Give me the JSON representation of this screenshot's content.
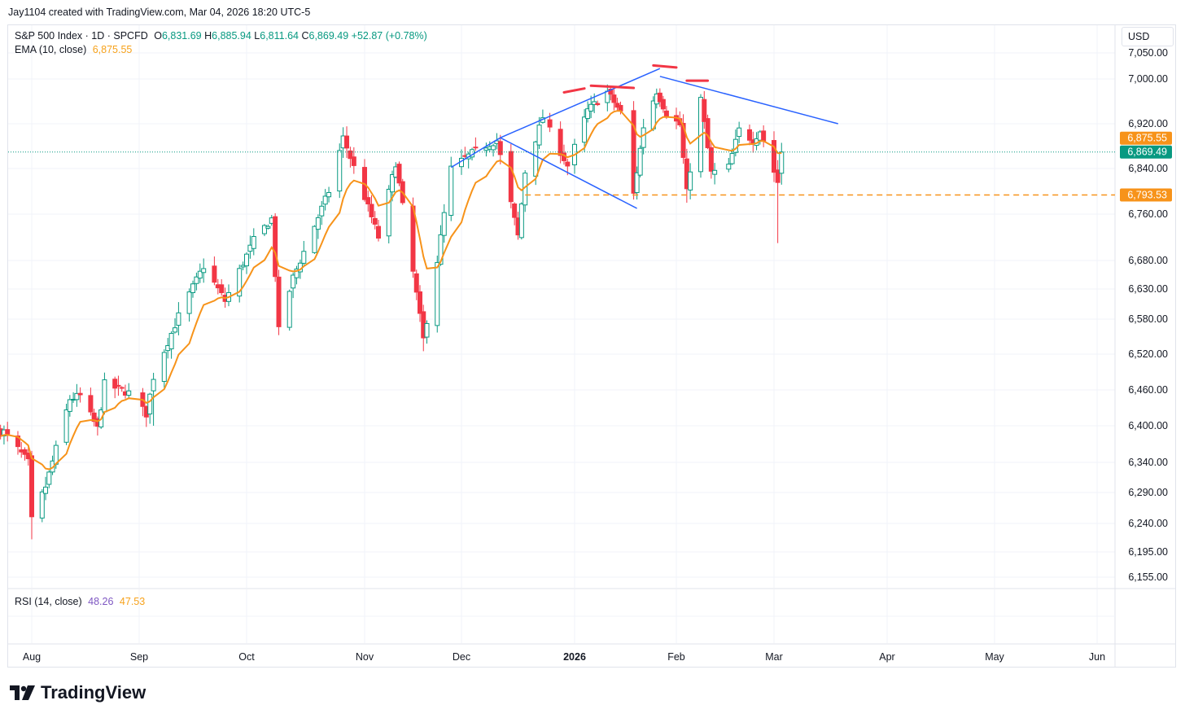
{
  "caption": "Jay1104 created with TradingView.com, Mar 04, 2026 18:20 UTC-5",
  "legend": {
    "symbol": "S&P 500 Index · 1D · SPCFD",
    "o_label": "O",
    "o_val": "6,831.69",
    "h_label": "H",
    "h_val": "6,885.94",
    "l_label": "L",
    "l_val": "6,811.64",
    "c_label": "C",
    "c_val": "6,869.49",
    "change": "+52.87 (+0.78%)",
    "ema_label": "EMA (10, close)",
    "ema_val": "6,875.55",
    "rsi_label": "RSI (14, close)",
    "rsi_val1": "48.26",
    "rsi_val2": "47.53"
  },
  "currency": "USD",
  "logo_text": "TradingView",
  "colors": {
    "up": "#089981",
    "down": "#f23645",
    "ema": "#f7931a",
    "trendline": "#2962ff",
    "annotation": "#f23645",
    "price_line": "#089981",
    "support": "#f7931a"
  },
  "chart_data": {
    "type": "candlestick",
    "y_ticks": [
      "7,050.00",
      "7,000.00",
      "6,920.00",
      "6,840.00",
      "6,760.00",
      "6,680.00",
      "6,630.00",
      "6,580.00",
      "6,520.00",
      "6,460.00",
      "6,400.00",
      "6,340.00",
      "6,290.00",
      "6,240.00",
      "6,195.00",
      "6,155.00"
    ],
    "x_ticks": [
      {
        "label": "Aug",
        "date": "2025-08-01",
        "bold": false
      },
      {
        "label": "Sep",
        "date": "2025-09-01",
        "bold": false
      },
      {
        "label": "Oct",
        "date": "2025-10-01",
        "bold": false
      },
      {
        "label": "Nov",
        "date": "2025-11-03",
        "bold": false
      },
      {
        "label": "Dec",
        "date": "2025-12-01",
        "bold": false
      },
      {
        "label": "2026",
        "date": "2026-01-02",
        "bold": true
      },
      {
        "label": "Feb",
        "date": "2026-02-02",
        "bold": false
      },
      {
        "label": "Mar",
        "date": "2026-03-02",
        "bold": false
      },
      {
        "label": "Apr",
        "date": "2026-04-01",
        "bold": false
      },
      {
        "label": "May",
        "date": "2026-05-01",
        "bold": false
      },
      {
        "label": "Jun",
        "date": "2026-06-01",
        "bold": false
      }
    ],
    "price_labels": [
      {
        "text": "6,875.55",
        "value": 6875.55,
        "color": "#f7931a"
      },
      {
        "text": "6,869.49",
        "value": 6869.49,
        "color": "#089981"
      },
      {
        "text": "6,793.53",
        "value": 6793.53,
        "color": "#f7931a"
      }
    ],
    "support_level": 6793.53,
    "last_close": 6869.49,
    "anchor_points": [
      [
        "2025-07-24",
        6390
      ],
      [
        "2025-07-31",
        6340
      ],
      [
        "2025-08-01",
        6245
      ],
      [
        "2025-08-05",
        6300
      ],
      [
        "2025-08-12",
        6445
      ],
      [
        "2025-08-15",
        6450
      ],
      [
        "2025-08-20",
        6395
      ],
      [
        "2025-08-22",
        6470
      ],
      [
        "2025-08-29",
        6455
      ],
      [
        "2025-09-03",
        6420
      ],
      [
        "2025-09-05",
        6482
      ],
      [
        "2025-09-12",
        6585
      ],
      [
        "2025-09-19",
        6670
      ],
      [
        "2025-09-25",
        6610
      ],
      [
        "2025-10-03",
        6715
      ],
      [
        "2025-10-08",
        6752
      ],
      [
        "2025-10-10",
        6560
      ],
      [
        "2025-10-14",
        6650
      ],
      [
        "2025-10-20",
        6740
      ],
      [
        "2025-10-24",
        6800
      ],
      [
        "2025-10-28",
        6895
      ],
      [
        "2025-11-04",
        6772
      ],
      [
        "2025-11-07",
        6720
      ],
      [
        "2025-11-12",
        6850
      ],
      [
        "2025-11-20",
        6545
      ],
      [
        "2025-11-24",
        6680
      ],
      [
        "2025-11-28",
        6840
      ],
      [
        "2025-12-05",
        6872
      ],
      [
        "2025-12-11",
        6890
      ],
      [
        "2025-12-17",
        6722
      ],
      [
        "2025-12-19",
        6834
      ],
      [
        "2025-12-24",
        6932
      ],
      [
        "2025-12-31",
        6845
      ],
      [
        "2026-01-06",
        6944
      ],
      [
        "2026-01-12",
        6977
      ],
      [
        "2026-01-16",
        6940
      ],
      [
        "2026-01-20",
        6795
      ],
      [
        "2026-01-23",
        6915
      ],
      [
        "2026-01-27",
        6978
      ],
      [
        "2026-01-30",
        6939
      ],
      [
        "2026-02-03",
        6918
      ],
      [
        "2026-02-05",
        6798
      ],
      [
        "2026-02-09",
        6964
      ],
      [
        "2026-02-12",
        6832
      ],
      [
        "2026-02-17",
        6843
      ],
      [
        "2026-02-20",
        6909
      ],
      [
        "2026-02-24",
        6890
      ],
      [
        "2026-02-26",
        6908
      ],
      [
        "2026-03-03",
        6816
      ],
      [
        "2026-03-04",
        6869.49
      ]
    ],
    "rsi": {
      "value1": 48.26,
      "value2": 47.53
    }
  }
}
